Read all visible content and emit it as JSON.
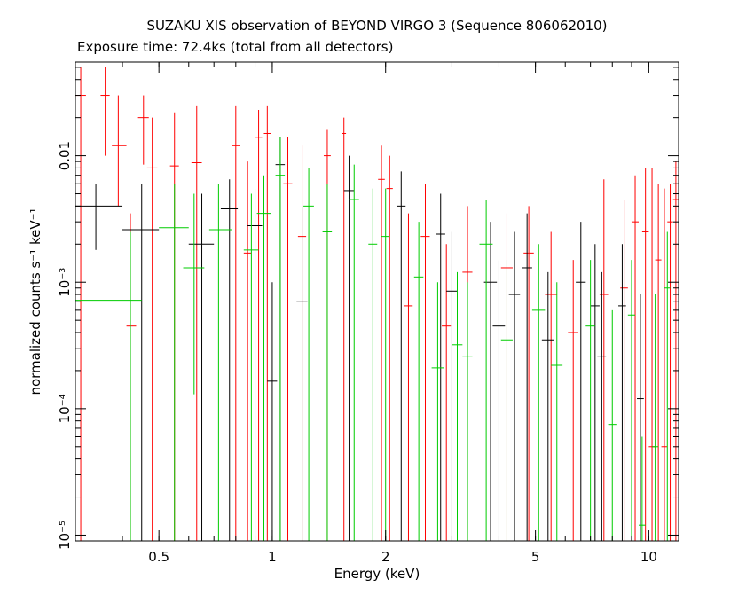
{
  "chart_data": {
    "type": "scatter",
    "title": "SUZAKU XIS observation of BEYOND VIRGO 3 (Sequence 806062010)",
    "subtitle": "Exposure time: 72.4ks (total from all detectors)",
    "xlabel": "Energy (keV)",
    "ylabel": "normalized counts s⁻¹ keV⁻¹",
    "xscale": "log",
    "yscale": "log",
    "xlim": [
      0.3,
      12
    ],
    "ylim": [
      9e-06,
      0.055
    ],
    "x_ticks": [
      {
        "value": 0.5,
        "label": "0.5"
      },
      {
        "value": 1,
        "label": "1"
      },
      {
        "value": 2,
        "label": "2"
      },
      {
        "value": 5,
        "label": "5"
      },
      {
        "value": 10,
        "label": "10"
      }
    ],
    "y_ticks": [
      {
        "value": 1e-05,
        "label": "10⁻⁵"
      },
      {
        "value": 0.0001,
        "label": "10⁻⁴"
      },
      {
        "value": 0.001,
        "label": "10⁻³"
      },
      {
        "value": 0.01,
        "label": "0.01"
      }
    ],
    "series": [
      {
        "color": "#ff0000",
        "points": [
          {
            "x": 0.31,
            "y": 0.03,
            "ylo": 9e-06,
            "yhi": 0.05,
            "xlo": 0.3,
            "xhi": 0.32
          },
          {
            "x": 0.36,
            "y": 0.03,
            "ylo": 0.01,
            "yhi": 0.05,
            "xlo": 0.35,
            "xhi": 0.37
          },
          {
            "x": 0.39,
            "y": 0.012,
            "ylo": 0.004,
            "yhi": 0.03,
            "xlo": 0.375,
            "xhi": 0.41
          },
          {
            "x": 0.42,
            "y": 0.00045,
            "ylo": 9e-06,
            "yhi": 0.0035,
            "xlo": 0.41,
            "xhi": 0.435
          },
          {
            "x": 0.455,
            "y": 0.02,
            "ylo": 0.0085,
            "yhi": 0.03,
            "xlo": 0.44,
            "xhi": 0.47
          },
          {
            "x": 0.48,
            "y": 0.008,
            "ylo": 9e-06,
            "yhi": 0.02,
            "xlo": 0.465,
            "xhi": 0.495
          },
          {
            "x": 0.55,
            "y": 0.0083,
            "ylo": 9e-06,
            "yhi": 0.022,
            "xlo": 0.535,
            "xhi": 0.565
          },
          {
            "x": 0.63,
            "y": 0.0088,
            "ylo": 9e-06,
            "yhi": 0.025,
            "xlo": 0.61,
            "xhi": 0.65
          },
          {
            "x": 0.8,
            "y": 0.012,
            "ylo": 9e-06,
            "yhi": 0.025,
            "xlo": 0.78,
            "xhi": 0.82
          },
          {
            "x": 0.86,
            "y": 0.0017,
            "ylo": 9e-06,
            "yhi": 0.009,
            "xlo": 0.84,
            "xhi": 0.88
          },
          {
            "x": 0.92,
            "y": 0.014,
            "ylo": 9e-06,
            "yhi": 0.023,
            "xlo": 0.9,
            "xhi": 0.94
          },
          {
            "x": 0.97,
            "y": 0.015,
            "ylo": 9e-06,
            "yhi": 0.025,
            "xlo": 0.95,
            "xhi": 0.99
          },
          {
            "x": 1.1,
            "y": 0.006,
            "ylo": 9e-06,
            "yhi": 0.014,
            "xlo": 1.07,
            "xhi": 1.13
          },
          {
            "x": 1.2,
            "y": 0.0023,
            "ylo": 9e-06,
            "yhi": 0.012,
            "xlo": 1.17,
            "xhi": 1.23
          },
          {
            "x": 1.4,
            "y": 0.01,
            "ylo": 9e-06,
            "yhi": 0.016,
            "xlo": 1.37,
            "xhi": 1.43
          },
          {
            "x": 1.55,
            "y": 0.015,
            "ylo": 9e-06,
            "yhi": 0.02,
            "xlo": 1.53,
            "xhi": 1.57
          },
          {
            "x": 1.95,
            "y": 0.0065,
            "ylo": 9e-06,
            "yhi": 0.012,
            "xlo": 1.91,
            "xhi": 1.99
          },
          {
            "x": 2.05,
            "y": 0.0055,
            "ylo": 9e-06,
            "yhi": 0.01,
            "xlo": 2.01,
            "xhi": 2.09
          },
          {
            "x": 2.3,
            "y": 0.00065,
            "ylo": 9e-06,
            "yhi": 0.0035,
            "xlo": 2.24,
            "xhi": 2.36
          },
          {
            "x": 2.55,
            "y": 0.0023,
            "ylo": 9e-06,
            "yhi": 0.006,
            "xlo": 2.48,
            "xhi": 2.62
          },
          {
            "x": 2.9,
            "y": 0.00045,
            "ylo": 9e-06,
            "yhi": 0.002,
            "xlo": 2.82,
            "xhi": 2.98
          },
          {
            "x": 3.3,
            "y": 0.0012,
            "ylo": 9e-06,
            "yhi": 0.004,
            "xlo": 3.2,
            "xhi": 3.4
          },
          {
            "x": 4.2,
            "y": 0.0013,
            "ylo": 9e-06,
            "yhi": 0.0035,
            "xlo": 4.05,
            "xhi": 4.35
          },
          {
            "x": 4.8,
            "y": 0.0017,
            "ylo": 9e-06,
            "yhi": 0.004,
            "xlo": 4.65,
            "xhi": 4.95
          },
          {
            "x": 5.5,
            "y": 0.0008,
            "ylo": 9e-06,
            "yhi": 0.0025,
            "xlo": 5.3,
            "xhi": 5.7
          },
          {
            "x": 6.3,
            "y": 0.0004,
            "ylo": 9e-06,
            "yhi": 0.0015,
            "xlo": 6.1,
            "xhi": 6.5
          },
          {
            "x": 7.6,
            "y": 0.0008,
            "ylo": 9e-06,
            "yhi": 0.0065,
            "xlo": 7.4,
            "xhi": 7.8
          },
          {
            "x": 8.6,
            "y": 0.0009,
            "ylo": 9e-06,
            "yhi": 0.0045,
            "xlo": 8.4,
            "xhi": 8.8
          },
          {
            "x": 9.2,
            "y": 0.003,
            "ylo": 9e-06,
            "yhi": 0.007,
            "xlo": 9.0,
            "xhi": 9.4
          },
          {
            "x": 9.8,
            "y": 0.0025,
            "ylo": 9e-06,
            "yhi": 0.008,
            "xlo": 9.6,
            "xhi": 10.0
          },
          {
            "x": 10.2,
            "y": 5e-05,
            "ylo": 9e-06,
            "yhi": 0.008,
            "xlo": 10.0,
            "xhi": 10.4
          },
          {
            "x": 10.6,
            "y": 0.0015,
            "ylo": 9e-06,
            "yhi": 0.006,
            "xlo": 10.4,
            "xhi": 10.8
          },
          {
            "x": 11.0,
            "y": 5e-05,
            "ylo": 9e-06,
            "yhi": 0.0055,
            "xlo": 10.8,
            "xhi": 11.2
          },
          {
            "x": 11.4,
            "y": 0.003,
            "ylo": 9e-06,
            "yhi": 0.006,
            "xlo": 11.2,
            "xhi": 11.6
          },
          {
            "x": 11.8,
            "y": 0.0045,
            "ylo": 9e-06,
            "yhi": 0.009,
            "xlo": 11.6,
            "xhi": 12.0
          }
        ]
      },
      {
        "color": "#000000",
        "points": [
          {
            "x": 0.34,
            "y": 0.004,
            "ylo": 0.0018,
            "yhi": 0.006,
            "xlo": 0.3,
            "xhi": 0.4
          },
          {
            "x": 0.45,
            "y": 0.0026,
            "ylo": 9e-06,
            "yhi": 0.006,
            "xlo": 0.4,
            "xhi": 0.5
          },
          {
            "x": 0.65,
            "y": 0.002,
            "ylo": 9e-06,
            "yhi": 0.005,
            "xlo": 0.6,
            "xhi": 0.7
          },
          {
            "x": 0.77,
            "y": 0.0038,
            "ylo": 9e-06,
            "yhi": 0.0065,
            "xlo": 0.73,
            "xhi": 0.81
          },
          {
            "x": 0.9,
            "y": 0.0028,
            "ylo": 9e-06,
            "yhi": 0.0055,
            "xlo": 0.86,
            "xhi": 0.94
          },
          {
            "x": 1.0,
            "y": 0.000165,
            "ylo": 9e-06,
            "yhi": 0.001,
            "xlo": 0.97,
            "xhi": 1.03
          },
          {
            "x": 1.05,
            "y": 0.0085,
            "ylo": 9e-06,
            "yhi": 0.014,
            "xlo": 1.02,
            "xhi": 1.08
          },
          {
            "x": 1.2,
            "y": 0.0007,
            "ylo": 9e-06,
            "yhi": 0.004,
            "xlo": 1.16,
            "xhi": 1.24
          },
          {
            "x": 1.6,
            "y": 0.0053,
            "ylo": 9e-06,
            "yhi": 0.01,
            "xlo": 1.55,
            "xhi": 1.65
          },
          {
            "x": 2.2,
            "y": 0.004,
            "ylo": 9e-06,
            "yhi": 0.0075,
            "xlo": 2.14,
            "xhi": 2.26
          },
          {
            "x": 2.8,
            "y": 0.0024,
            "ylo": 9e-06,
            "yhi": 0.005,
            "xlo": 2.72,
            "xhi": 2.88
          },
          {
            "x": 3.0,
            "y": 0.00085,
            "ylo": 9e-06,
            "yhi": 0.0025,
            "xlo": 2.9,
            "xhi": 3.1
          },
          {
            "x": 3.8,
            "y": 0.001,
            "ylo": 9e-06,
            "yhi": 0.003,
            "xlo": 3.65,
            "xhi": 3.95
          },
          {
            "x": 4.0,
            "y": 0.00045,
            "ylo": 9e-06,
            "yhi": 0.0015,
            "xlo": 3.85,
            "xhi": 4.15
          },
          {
            "x": 4.4,
            "y": 0.0008,
            "ylo": 9e-06,
            "yhi": 0.0025,
            "xlo": 4.25,
            "xhi": 4.55
          },
          {
            "x": 4.75,
            "y": 0.0013,
            "ylo": 9e-06,
            "yhi": 0.0035,
            "xlo": 4.6,
            "xhi": 4.9
          },
          {
            "x": 5.4,
            "y": 0.00035,
            "ylo": 9e-06,
            "yhi": 0.0012,
            "xlo": 5.2,
            "xhi": 5.6
          },
          {
            "x": 6.6,
            "y": 0.001,
            "ylo": 9e-06,
            "yhi": 0.003,
            "xlo": 6.4,
            "xhi": 6.8
          },
          {
            "x": 7.2,
            "y": 0.00065,
            "ylo": 9e-06,
            "yhi": 0.002,
            "xlo": 7.0,
            "xhi": 7.4
          },
          {
            "x": 7.5,
            "y": 0.00026,
            "ylo": 9e-06,
            "yhi": 0.0012,
            "xlo": 7.3,
            "xhi": 7.7
          },
          {
            "x": 8.5,
            "y": 0.00065,
            "ylo": 9e-06,
            "yhi": 0.002,
            "xlo": 8.3,
            "xhi": 8.7
          },
          {
            "x": 9.5,
            "y": 0.00012,
            "ylo": 9e-06,
            "yhi": 0.0008,
            "xlo": 9.3,
            "xhi": 9.7
          }
        ]
      },
      {
        "color": "#00cc00",
        "points": [
          {
            "x": 0.42,
            "y": 0.00072,
            "ylo": 9e-06,
            "yhi": 0.0025,
            "xlo": 0.3,
            "xhi": 0.45
          },
          {
            "x": 0.55,
            "y": 0.0027,
            "ylo": 9e-06,
            "yhi": 0.006,
            "xlo": 0.5,
            "xhi": 0.6
          },
          {
            "x": 0.62,
            "y": 0.0013,
            "ylo": 0.00013,
            "yhi": 0.005,
            "xlo": 0.58,
            "xhi": 0.66
          },
          {
            "x": 0.72,
            "y": 0.0026,
            "ylo": 9e-06,
            "yhi": 0.006,
            "xlo": 0.68,
            "xhi": 0.78
          },
          {
            "x": 0.88,
            "y": 0.0018,
            "ylo": 9e-06,
            "yhi": 0.005,
            "xlo": 0.84,
            "xhi": 0.92
          },
          {
            "x": 0.95,
            "y": 0.0035,
            "ylo": 9e-06,
            "yhi": 0.007,
            "xlo": 0.91,
            "xhi": 0.99
          },
          {
            "x": 1.05,
            "y": 0.007,
            "ylo": 9e-06,
            "yhi": 0.014,
            "xlo": 1.02,
            "xhi": 1.08
          },
          {
            "x": 1.25,
            "y": 0.004,
            "ylo": 9e-06,
            "yhi": 0.008,
            "xlo": 1.21,
            "xhi": 1.29
          },
          {
            "x": 1.4,
            "y": 0.0025,
            "ylo": 9e-06,
            "yhi": 0.006,
            "xlo": 1.36,
            "xhi": 1.44
          },
          {
            "x": 1.65,
            "y": 0.0045,
            "ylo": 9e-06,
            "yhi": 0.0085,
            "xlo": 1.6,
            "xhi": 1.7
          },
          {
            "x": 1.85,
            "y": 0.002,
            "ylo": 9e-06,
            "yhi": 0.0055,
            "xlo": 1.8,
            "xhi": 1.9
          },
          {
            "x": 2.0,
            "y": 0.0023,
            "ylo": 9e-06,
            "yhi": 0.0055,
            "xlo": 1.95,
            "xhi": 2.05
          },
          {
            "x": 2.45,
            "y": 0.0011,
            "ylo": 9e-06,
            "yhi": 0.003,
            "xlo": 2.38,
            "xhi": 2.52
          },
          {
            "x": 2.75,
            "y": 0.00021,
            "ylo": 9e-06,
            "yhi": 0.001,
            "xlo": 2.65,
            "xhi": 2.85
          },
          {
            "x": 3.1,
            "y": 0.00032,
            "ylo": 9e-06,
            "yhi": 0.0012,
            "xlo": 3.0,
            "xhi": 3.2
          },
          {
            "x": 3.3,
            "y": 0.00026,
            "ylo": 9e-06,
            "yhi": 0.001,
            "xlo": 3.2,
            "xhi": 3.4
          },
          {
            "x": 3.7,
            "y": 0.002,
            "ylo": 9e-06,
            "yhi": 0.0045,
            "xlo": 3.55,
            "xhi": 3.85
          },
          {
            "x": 4.2,
            "y": 0.00035,
            "ylo": 9e-06,
            "yhi": 0.0015,
            "xlo": 4.05,
            "xhi": 4.35
          },
          {
            "x": 5.1,
            "y": 0.0006,
            "ylo": 9e-06,
            "yhi": 0.002,
            "xlo": 4.9,
            "xhi": 5.3
          },
          {
            "x": 5.7,
            "y": 0.00022,
            "ylo": 9e-06,
            "yhi": 0.001,
            "xlo": 5.5,
            "xhi": 5.9
          },
          {
            "x": 7.0,
            "y": 0.00045,
            "ylo": 9e-06,
            "yhi": 0.0015,
            "xlo": 6.8,
            "xhi": 7.2
          },
          {
            "x": 8.0,
            "y": 7.5e-05,
            "ylo": 9e-06,
            "yhi": 0.0006,
            "xlo": 7.8,
            "xhi": 8.2
          },
          {
            "x": 9.0,
            "y": 0.00055,
            "ylo": 9e-06,
            "yhi": 0.0015,
            "xlo": 8.8,
            "xhi": 9.2
          },
          {
            "x": 9.6,
            "y": 1.2e-05,
            "ylo": 9e-06,
            "yhi": 6e-05,
            "xlo": 9.4,
            "xhi": 9.8
          },
          {
            "x": 10.4,
            "y": 5e-05,
            "ylo": 9e-06,
            "yhi": 0.0008,
            "xlo": 10.2,
            "xhi": 10.6
          },
          {
            "x": 11.2,
            "y": 0.0009,
            "ylo": 9e-06,
            "yhi": 0.0025,
            "xlo": 11.0,
            "xhi": 11.4
          }
        ]
      }
    ]
  }
}
